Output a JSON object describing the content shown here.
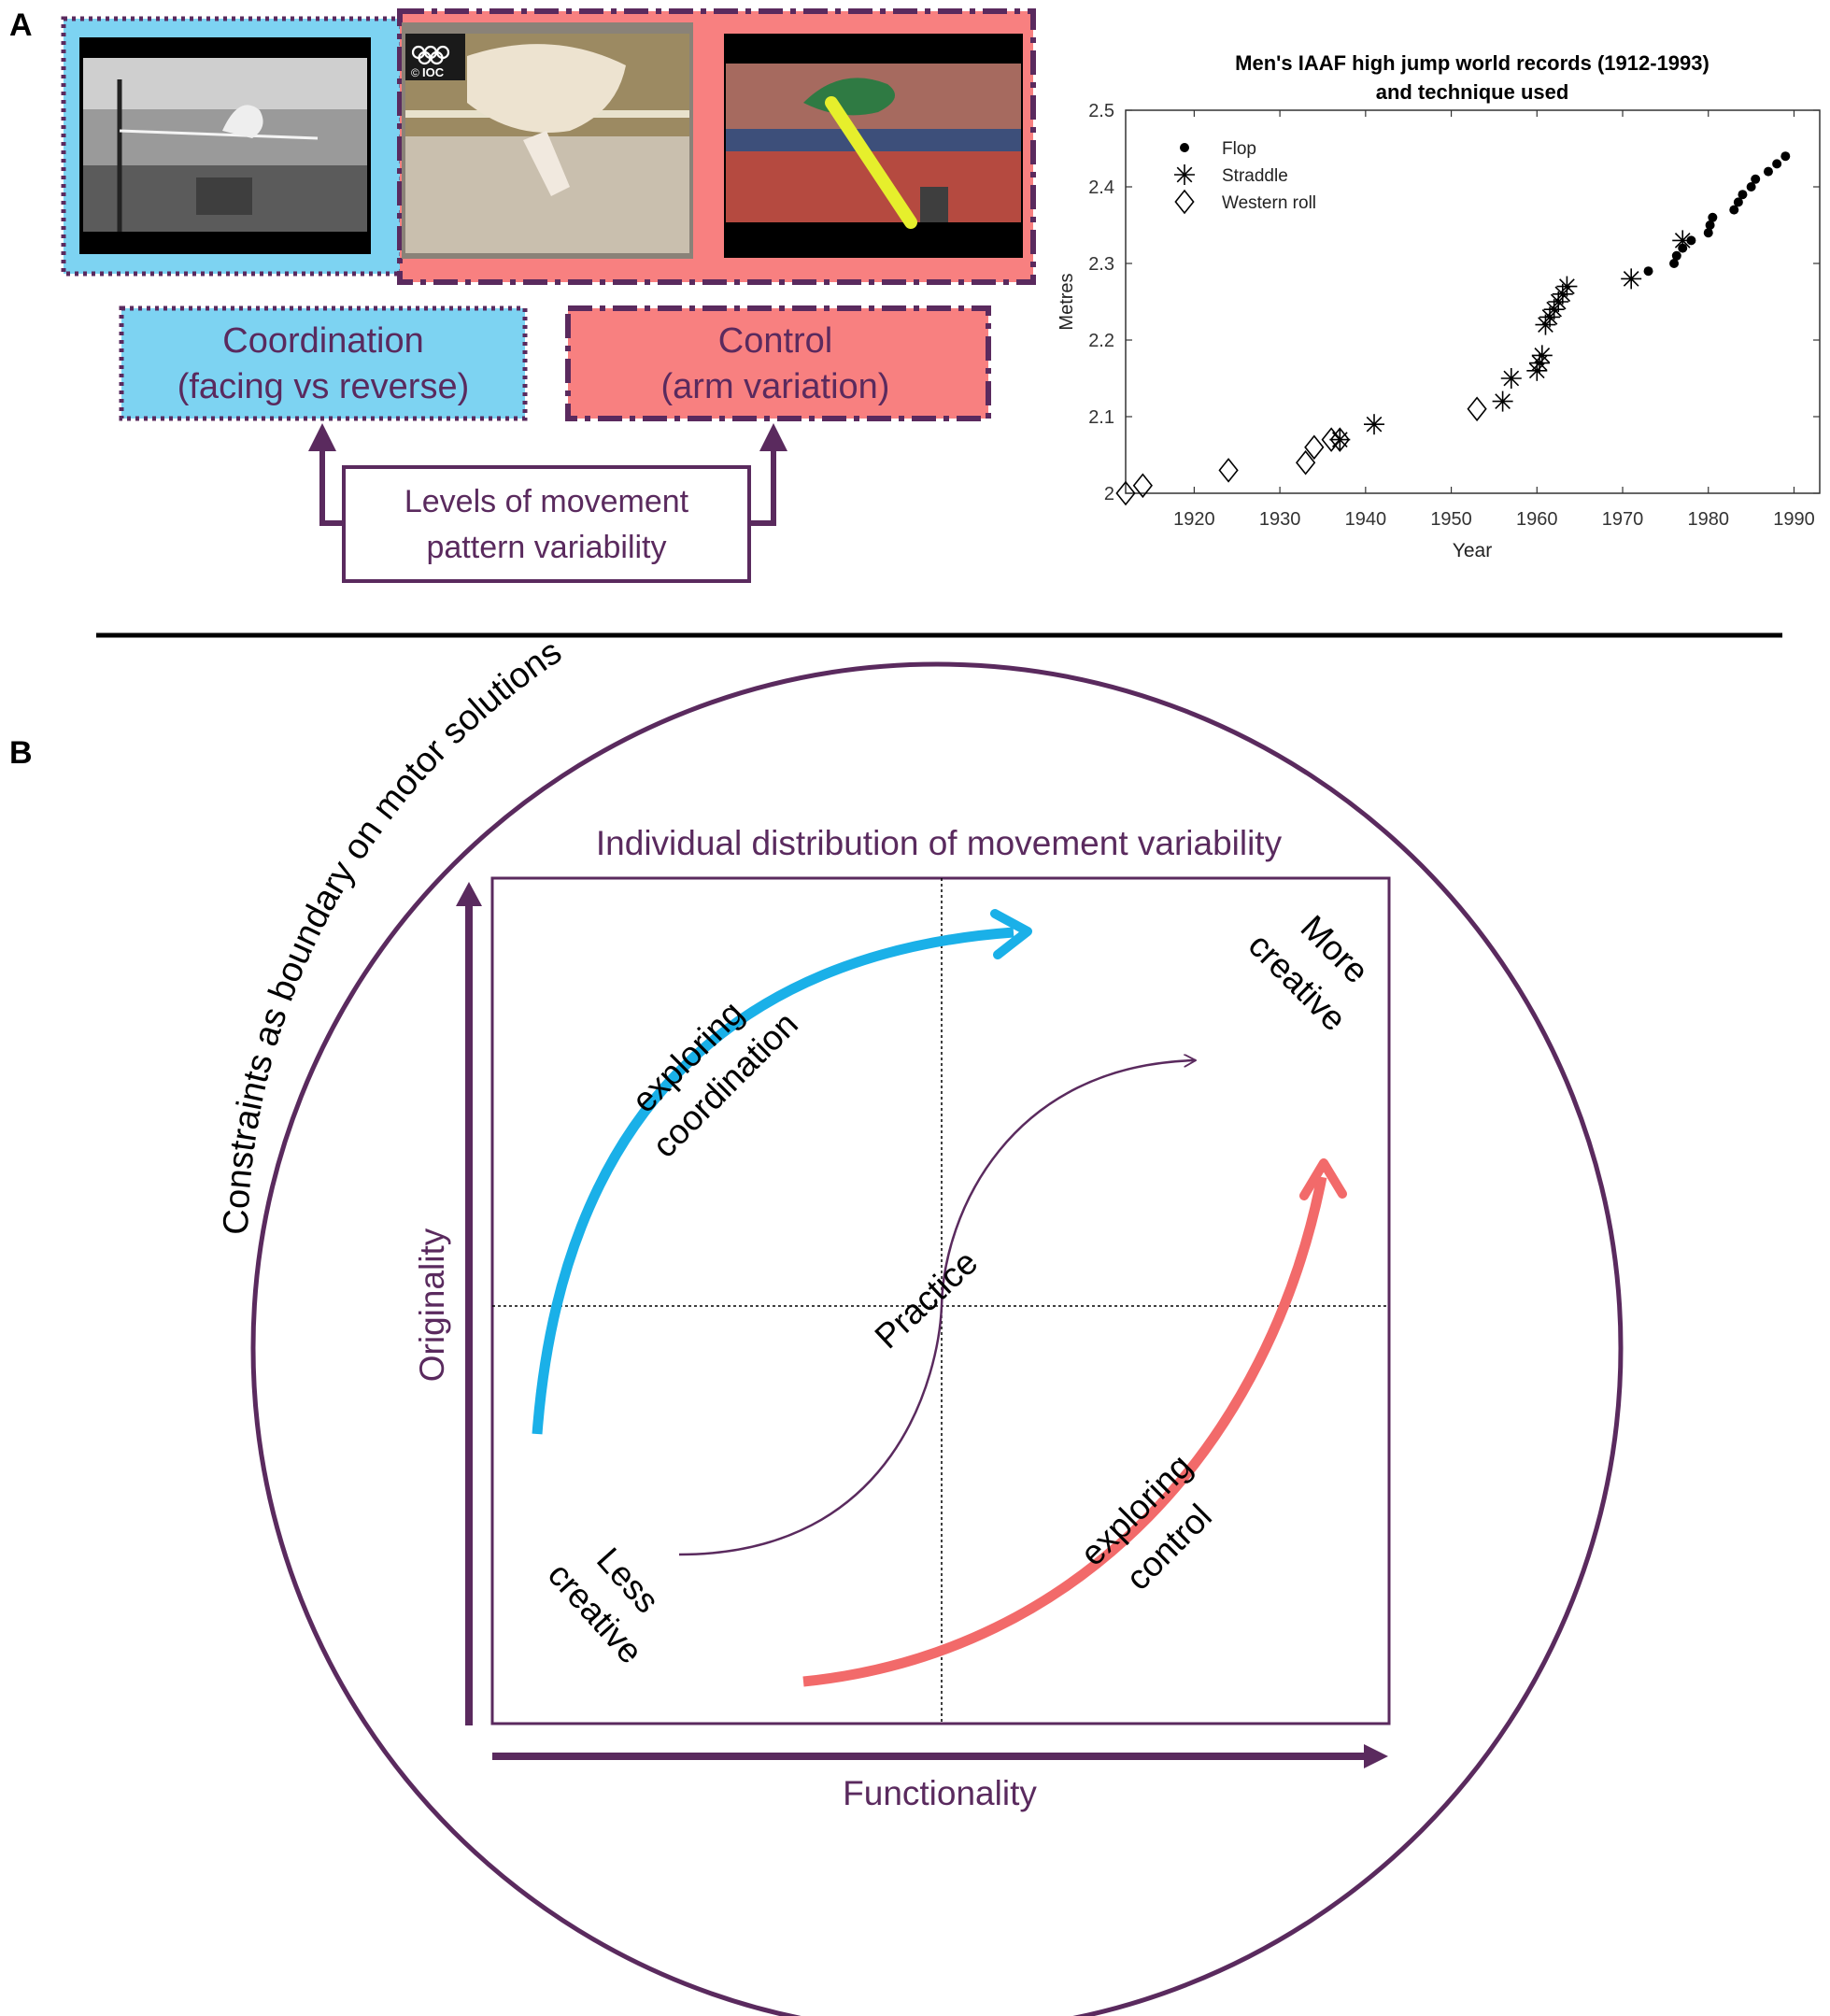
{
  "panel_a": {
    "label": "A",
    "photos": {
      "photo1_name": "western-roll-jump",
      "photo2_name": "straddle-jump",
      "photo3_name": "flop-jump",
      "ioc_logo_text": "IOC",
      "ioc_copyright": "©"
    },
    "boxes": {
      "coordination_line1": "Coordination",
      "coordination_line2": "(facing vs reverse)",
      "control_line1": "Control",
      "control_line2": "(arm variation)",
      "levels_line1": "Levels of movement",
      "levels_line2": "pattern  variability"
    },
    "colors": {
      "coordination_fill": "#7dd3f2",
      "control_fill": "#f88080",
      "outline": "#5a2a5e"
    }
  },
  "chart_data": {
    "type": "scatter",
    "title_line1": "Men's IAAF high jump world records (1912-1993)",
    "title_line2": "and technique used",
    "xlabel": "Year",
    "ylabel": "Metres",
    "xlim": [
      1912,
      1993
    ],
    "ylim": [
      2.0,
      2.5
    ],
    "xticks": [
      1920,
      1930,
      1940,
      1950,
      1960,
      1970,
      1980,
      1990
    ],
    "yticks": [
      2,
      2.1,
      2.2,
      2.3,
      2.4,
      2.5
    ],
    "ytick_labels": [
      "2",
      "2.1",
      "2.2",
      "2.3",
      "2.4",
      "2.5"
    ],
    "legend_position": "top-left",
    "series": [
      {
        "name": "Flop",
        "marker": "dot",
        "points": [
          [
            1973,
            2.29
          ],
          [
            1976,
            2.3
          ],
          [
            1976.3,
            2.31
          ],
          [
            1977,
            2.32
          ],
          [
            1978,
            2.33
          ],
          [
            1980,
            2.34
          ],
          [
            1980.2,
            2.35
          ],
          [
            1980.5,
            2.36
          ],
          [
            1983,
            2.37
          ],
          [
            1983.5,
            2.38
          ],
          [
            1984,
            2.39
          ],
          [
            1985,
            2.4
          ],
          [
            1985.5,
            2.41
          ],
          [
            1987,
            2.42
          ],
          [
            1988,
            2.43
          ],
          [
            1989,
            2.44
          ]
        ]
      },
      {
        "name": "Straddle",
        "marker": "star",
        "points": [
          [
            1937,
            2.07
          ],
          [
            1941,
            2.09
          ],
          [
            1956,
            2.12
          ],
          [
            1957,
            2.15
          ],
          [
            1960,
            2.16
          ],
          [
            1960.3,
            2.17
          ],
          [
            1960.6,
            2.18
          ],
          [
            1961,
            2.22
          ],
          [
            1961.5,
            2.23
          ],
          [
            1962,
            2.24
          ],
          [
            1962.5,
            2.25
          ],
          [
            1963,
            2.26
          ],
          [
            1963.5,
            2.27
          ],
          [
            1971,
            2.28
          ],
          [
            1977,
            2.33
          ]
        ]
      },
      {
        "name": "Western roll",
        "marker": "diamond",
        "points": [
          [
            1912,
            2.0
          ],
          [
            1914,
            2.01
          ],
          [
            1924,
            2.03
          ],
          [
            1933,
            2.04
          ],
          [
            1934,
            2.06
          ],
          [
            1936,
            2.07
          ],
          [
            1937,
            2.07
          ],
          [
            1953,
            2.11
          ]
        ]
      }
    ]
  },
  "panel_b": {
    "label": "B",
    "circle_text": "Constraints as boundary on motor solutions",
    "box_title": "Individual  distribution  of movement  variability",
    "y_axis_label": "Originality",
    "x_axis_label": "Functionality",
    "more_creative_line1": "More",
    "more_creative_line2": "creative",
    "less_creative_line1": "Less",
    "less_creative_line2": "creative",
    "practice": "Practice",
    "exploring_coordination_line1": "exploring",
    "exploring_coordination_line2": "coordination",
    "exploring_control_line1": "exploring",
    "exploring_control_line2": "control",
    "colors": {
      "coordination_arrow": "#1ab0e8",
      "control_arrow": "#f26a6a",
      "outline": "#5a2a5e"
    }
  }
}
